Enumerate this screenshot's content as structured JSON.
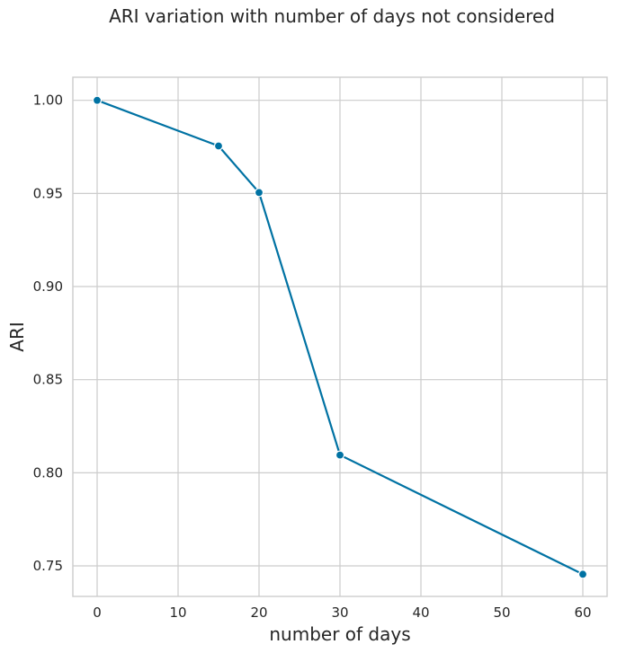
{
  "chart_data": {
    "type": "line",
    "title": "ARI variation with number of days not considered",
    "xlabel": "number of days",
    "ylabel": "ARI",
    "x": [
      0,
      15,
      20,
      30,
      60
    ],
    "series": [
      {
        "name": "",
        "values": [
          1.0,
          0.9755,
          0.9505,
          0.8095,
          0.7455
        ]
      }
    ],
    "xlim": [
      -3,
      63
    ],
    "ylim": [
      0.7336,
      1.0124
    ],
    "xticks": [
      0,
      10,
      20,
      30,
      40,
      50,
      60
    ],
    "xtick_labels": [
      "0",
      "10",
      "20",
      "30",
      "40",
      "50",
      "60"
    ],
    "yticks": [
      0.75,
      0.8,
      0.85,
      0.9,
      0.95,
      1.0
    ],
    "ytick_labels": [
      "0.75",
      "0.80",
      "0.85",
      "0.90",
      "0.95",
      "1.00"
    ],
    "grid": true,
    "markers": true,
    "line_color": "#0072a3"
  }
}
